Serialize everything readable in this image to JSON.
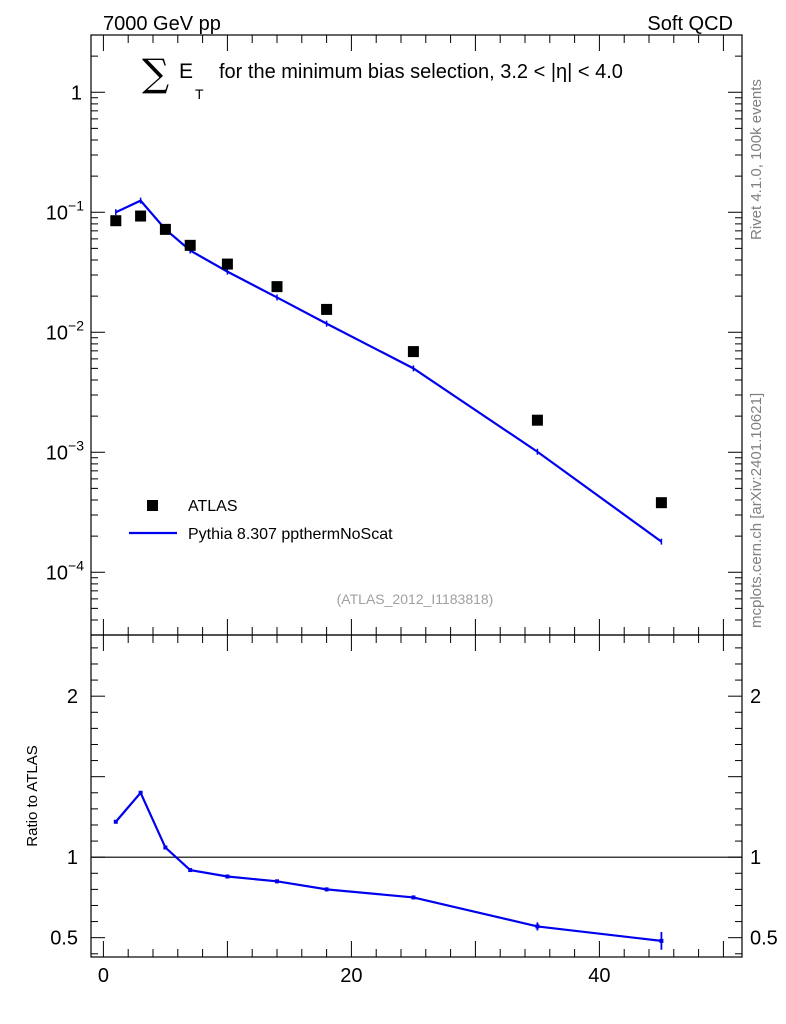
{
  "header": {
    "left": "7000 GeV pp",
    "right": "Soft QCD"
  },
  "chart_data": {
    "type": "line",
    "title": {
      "prefix": "E",
      "subscript": "T",
      "suffix": "for the minimum bias selection, 3.2 < |η| < 4.0"
    },
    "analysis_id": "(ATLAS_2012_I1183818)",
    "side_labels": {
      "rivet": "Rivet 4.1.0,  100k events",
      "mcplots": "mcplots.cern.ch [arXiv:2401.10621]"
    },
    "xlim": [
      -1,
      51.5
    ],
    "x_ticks": [
      0,
      20,
      40
    ],
    "main": {
      "yscale": "log",
      "ylim": [
        3e-05,
        3.0
      ],
      "y_ticks": [
        {
          "value": 1,
          "label": "1"
        },
        {
          "value": 0.1,
          "label": "10",
          "exp": "−1"
        },
        {
          "value": 0.01,
          "label": "10",
          "exp": "−2"
        },
        {
          "value": 0.001,
          "label": "10",
          "exp": "−3"
        },
        {
          "value": 0.0001,
          "label": "10",
          "exp": "−4"
        }
      ]
    },
    "ratio": {
      "ylabel": "Ratio to ATLAS",
      "ylim": [
        0.38,
        2.38
      ],
      "y_ticks": [
        0.5,
        1,
        2
      ],
      "y_tick_labels": [
        "0.5",
        "1",
        "2"
      ]
    },
    "legend": {
      "position": "bottom-left",
      "entries": [
        {
          "label": "ATLAS",
          "marker": "square"
        },
        {
          "label": "Pythia 8.307 ppthermNoScat",
          "marker": "line"
        }
      ]
    },
    "series": [
      {
        "name": "ATLAS",
        "color": "#000000",
        "style": "markers",
        "x": [
          1,
          3,
          5,
          7,
          10,
          14,
          18,
          25,
          35,
          45
        ],
        "y": [
          0.085,
          0.093,
          0.072,
          0.053,
          0.037,
          0.024,
          0.0155,
          0.0069,
          0.00185,
          0.00038
        ]
      },
      {
        "name": "Pythia 8.307 ppthermNoScat",
        "color": "#0000ee",
        "style": "line",
        "x": [
          1,
          3,
          5,
          7,
          10,
          14,
          18,
          25,
          35,
          45
        ],
        "y": [
          0.1,
          0.125,
          0.072,
          0.048,
          0.032,
          0.0195,
          0.0118,
          0.005,
          0.00101,
          0.00018
        ],
        "ratio": [
          1.22,
          1.4,
          1.06,
          0.92,
          0.88,
          0.85,
          0.8,
          0.75,
          0.57,
          0.48
        ],
        "ratio_err": [
          0.01,
          0.01,
          0.01,
          0.01,
          0.01,
          0.01,
          0.012,
          0.012,
          0.025,
          0.055
        ]
      }
    ]
  }
}
